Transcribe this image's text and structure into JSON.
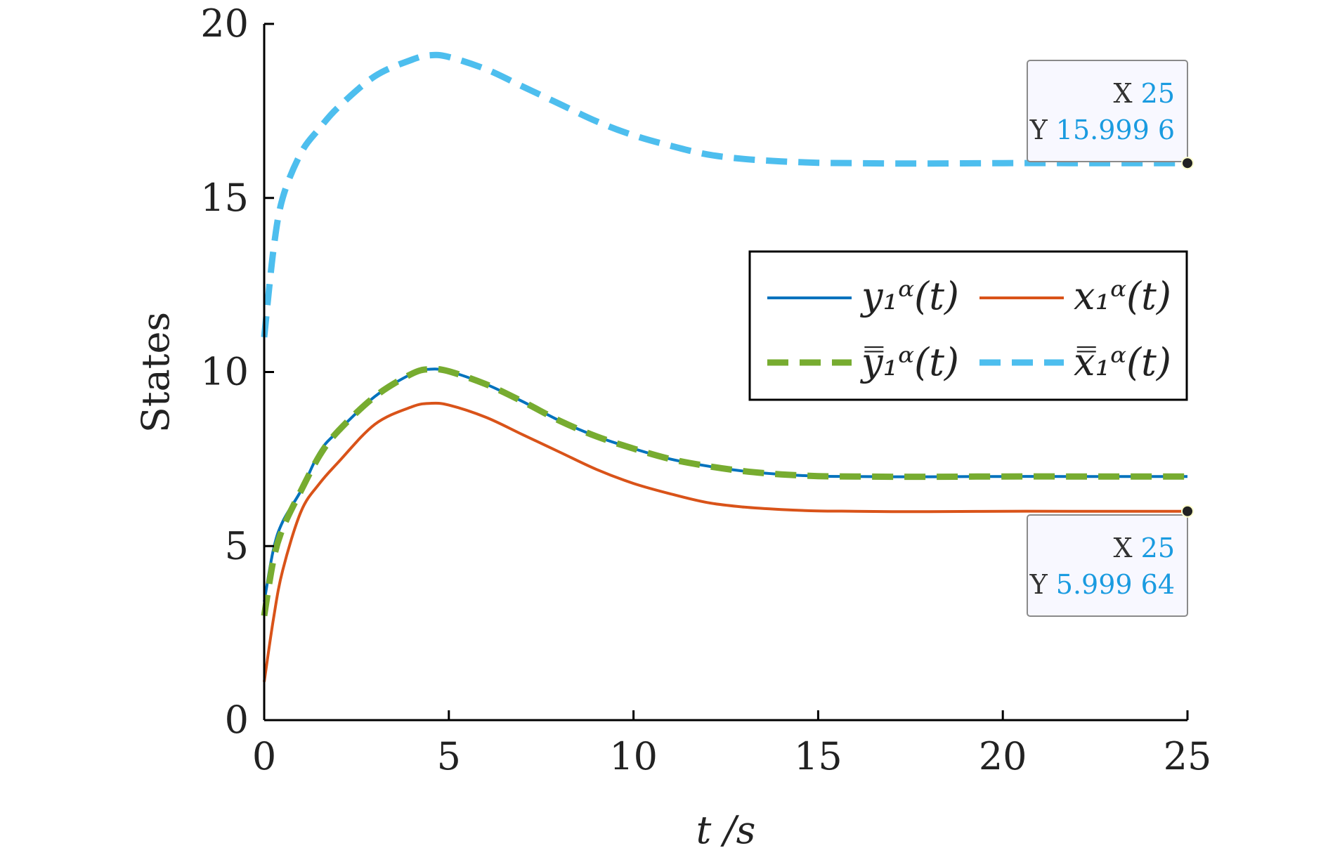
{
  "chart_data": {
    "type": "line",
    "xlabel": "t /s",
    "ylabel": "States",
    "xlim": [
      0,
      25
    ],
    "ylim": [
      0,
      20
    ],
    "xticks": [
      0,
      5,
      10,
      15,
      20,
      25
    ],
    "yticks": [
      0,
      5,
      10,
      15,
      20
    ],
    "grid": false,
    "legend_position": "center-right",
    "series": [
      {
        "name": "y₁ᵅ(t)",
        "color": "#0072BD",
        "style": "solid",
        "x": [
          0,
          0.25,
          0.5,
          1,
          1.5,
          2,
          3,
          4,
          4.5,
          5,
          6,
          7,
          8,
          9,
          10,
          11,
          12,
          13,
          14,
          15,
          16,
          17,
          18,
          20,
          22,
          25
        ],
        "y": [
          3.4,
          4.9,
          5.7,
          6.6,
          7.7,
          8.3,
          9.3,
          9.95,
          10.08,
          10.02,
          9.65,
          9.15,
          8.6,
          8.15,
          7.8,
          7.5,
          7.3,
          7.15,
          7.06,
          7.01,
          7.0,
          6.99,
          6.99,
          7.0,
          7.0,
          7.0
        ]
      },
      {
        "name": "x₁ᵅ(t)",
        "color": "#D95319",
        "style": "solid",
        "x": [
          0,
          0.25,
          0.5,
          1,
          1.5,
          2,
          3,
          4,
          4.5,
          5,
          6,
          7,
          8,
          9,
          10,
          11,
          12,
          13,
          14,
          15,
          16,
          17,
          18,
          20,
          22,
          25
        ],
        "y": [
          1.1,
          2.9,
          4.3,
          6.0,
          6.8,
          7.4,
          8.5,
          9.0,
          9.1,
          9.05,
          8.7,
          8.2,
          7.7,
          7.2,
          6.8,
          6.5,
          6.25,
          6.12,
          6.05,
          6.01,
          6.0,
          5.99,
          5.99,
          6.0,
          6.0,
          5.99964
        ]
      },
      {
        "name": "y̿₁ᵅ(t)",
        "color": "#77AC30",
        "style": "dashed",
        "x": [
          0,
          0.25,
          0.5,
          1,
          1.5,
          2,
          3,
          4,
          4.5,
          5,
          6,
          7,
          8,
          9,
          10,
          11,
          12,
          13,
          14,
          15,
          16,
          17,
          18,
          20,
          22,
          25
        ],
        "y": [
          3.0,
          4.6,
          5.5,
          6.6,
          7.6,
          8.3,
          9.3,
          9.95,
          10.08,
          10.02,
          9.65,
          9.15,
          8.6,
          8.15,
          7.8,
          7.5,
          7.3,
          7.15,
          7.06,
          7.01,
          7.0,
          6.99,
          6.99,
          7.0,
          7.0,
          7.0
        ]
      },
      {
        "name": "x̿₁ᵅ(t)",
        "color": "#4DBEEE",
        "style": "dashed",
        "x": [
          0,
          0.25,
          0.5,
          1,
          1.5,
          2,
          3,
          4,
          4.5,
          5,
          6,
          7,
          8,
          9,
          10,
          11,
          12,
          13,
          14,
          15,
          16,
          17,
          18,
          20,
          22,
          25
        ],
        "y": [
          11.0,
          13.5,
          15.0,
          16.3,
          17.0,
          17.6,
          18.5,
          18.97,
          19.1,
          19.05,
          18.7,
          18.2,
          17.7,
          17.2,
          16.8,
          16.5,
          16.25,
          16.12,
          16.05,
          16.01,
          16.0,
          15.99,
          15.99,
          16.0,
          16.0,
          15.9996
        ]
      }
    ],
    "datatips": [
      {
        "x_key": "X",
        "x_value": "25",
        "y_key": "Y",
        "y_value": "15.999 6",
        "x": 25,
        "y": 15.9996
      },
      {
        "x_key": "X",
        "x_value": "25",
        "y_key": "Y",
        "y_value": "5.999 64",
        "x": 25,
        "y": 5.99964
      }
    ]
  }
}
